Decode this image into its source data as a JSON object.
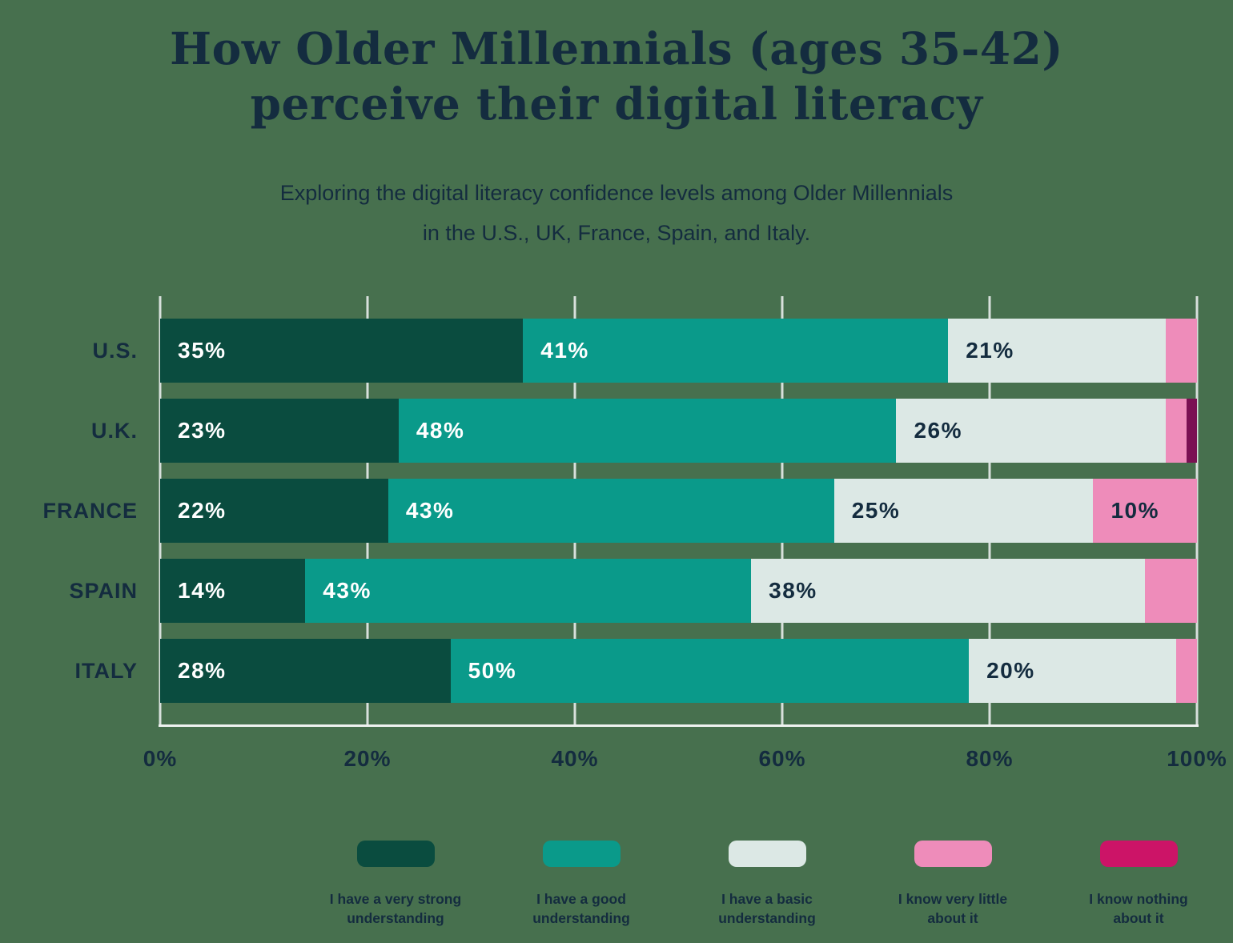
{
  "title": "How Older Millennials (ages 35-42)\nperceive their digital literacy",
  "subtitle": "Exploring the digital literacy confidence levels among Older Millennials\nin the U.S., UK, France, Spain, and Italy.",
  "colors": {
    "background": "#47704e",
    "text": "#142c3f",
    "gridline": "#d8e0dc",
    "axis_line": "#eef2f0",
    "bar_label_light": "#ffffff",
    "bar_label_dark": "#142c3f"
  },
  "chart_data": {
    "type": "bar",
    "variant": "horizontal-stacked",
    "title": "How Older Millennials (ages 35-42) perceive their digital literacy",
    "subtitle": "Exploring the digital literacy confidence levels among Older Millennials in the U.S., UK, France, Spain, and Italy.",
    "categories": [
      "U.S.",
      "U.K.",
      "FRANCE",
      "SPAIN",
      "ITALY"
    ],
    "series": [
      {
        "name": "I have a very strong understanding",
        "legend_label": "I have a very strong\nunderstanding",
        "color": "#0a4c3f",
        "label_color": "#ffffff",
        "values": [
          35,
          23,
          22,
          14,
          28
        ]
      },
      {
        "name": "I have a good understanding",
        "legend_label": "I have a good\nunderstanding",
        "color": "#0a9a8a",
        "label_color": "#ffffff",
        "values": [
          41,
          48,
          43,
          43,
          50
        ]
      },
      {
        "name": "I have a basic understanding",
        "legend_label": "I have a basic\nunderstanding",
        "color": "#dce8e5",
        "label_color": "#142c3f",
        "values": [
          21,
          26,
          25,
          38,
          20
        ]
      },
      {
        "name": "I know very little about it",
        "legend_label": "I know very little\nabout it",
        "color": "#ee8cba",
        "label_color": "#142c3f",
        "values": [
          3,
          2,
          10,
          5,
          2
        ]
      },
      {
        "name": "I know nothing about it",
        "legend_label": "I know nothing\nabout it",
        "color": "#7a1053",
        "legend_color": "#cc1467",
        "label_color": "#ffffff",
        "values": [
          0,
          1,
          0,
          0,
          0
        ]
      }
    ],
    "x_ticks": [
      "0%",
      "20%",
      "40%",
      "60%",
      "80%",
      "100%"
    ],
    "xlim": [
      0,
      100
    ],
    "value_suffix": "%",
    "label_min_value": 10,
    "grid": true,
    "legend_position": "bottom"
  }
}
